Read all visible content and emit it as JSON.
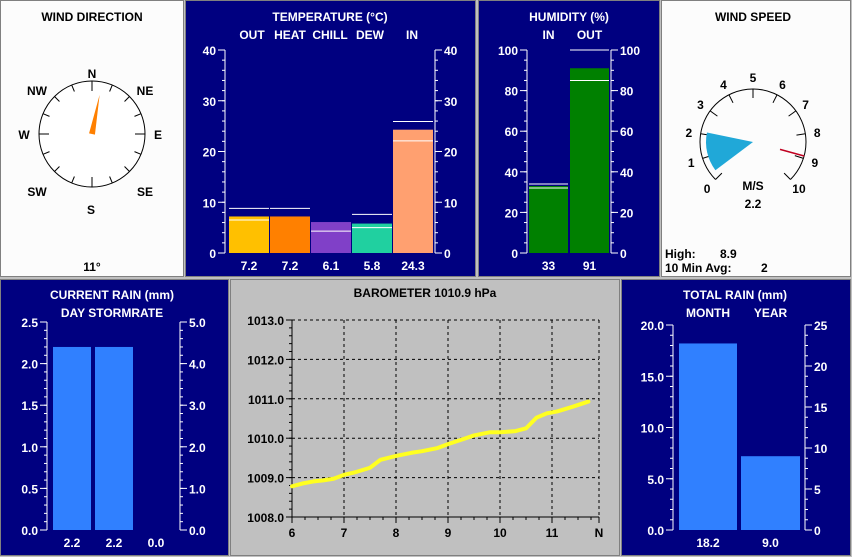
{
  "wind_direction": {
    "title": "WIND DIRECTION",
    "compass_labels": [
      "N",
      "NE",
      "E",
      "SE",
      "S",
      "SW",
      "W",
      "NW"
    ],
    "direction_deg": 11,
    "degrees_label": "11°",
    "needle_color": "#ff8000"
  },
  "wind_speed": {
    "title": "WIND SPEED",
    "scale_labels": [
      "0",
      "1",
      "2",
      "3",
      "4",
      "5",
      "6",
      "7",
      "8",
      "9",
      "10"
    ],
    "scale_max": 10,
    "value": 2.2,
    "high_value": 8.9,
    "unit": "M/S",
    "value_label": "2.2",
    "high_label": "High:",
    "high_text": "8.9",
    "avg_label": "10 Min Avg:",
    "avg_text": "2",
    "wedge_color": "#20a8d8",
    "high_marker_color": "#c00020"
  },
  "colors": {
    "panel_blue": "#000080",
    "rain_bar": "#3080ff",
    "humidity_bar": "#008000",
    "baro_line": "#ffff20"
  },
  "chart_data": [
    {
      "id": "temperature",
      "type": "bar",
      "title": "TEMPERATURE  (°C)",
      "categories": [
        "OUT",
        "HEAT",
        "CHILL",
        "DEW",
        "IN"
      ],
      "values": [
        7.2,
        7.2,
        6.1,
        5.8,
        24.3
      ],
      "value_labels": [
        "7.2",
        "7.2",
        "6.1",
        "5.8",
        "24.3"
      ],
      "high": [
        8.8,
        8.8,
        null,
        7.6,
        25.9
      ],
      "low": [
        6.5,
        null,
        4.3,
        5.0,
        22.1
      ],
      "colors": [
        "#ffc000",
        "#ff8000",
        "#8040c8",
        "#20d0a0",
        "#ffa070"
      ],
      "ylim": [
        0,
        40
      ],
      "yticks": [
        "0",
        "10",
        "20",
        "30",
        "40"
      ],
      "y2ticks": [
        "0",
        "10",
        "20",
        "30",
        "40"
      ]
    },
    {
      "id": "humidity",
      "type": "bar",
      "title": "HUMIDITY  (%)",
      "categories": [
        "IN",
        "OUT"
      ],
      "values": [
        33,
        91
      ],
      "value_labels": [
        "33",
        "91"
      ],
      "high": [
        34,
        100
      ],
      "low": [
        32,
        85
      ],
      "colors": [
        "#008000",
        "#008000"
      ],
      "ylim": [
        0,
        100
      ],
      "yticks": [
        "0",
        "20",
        "40",
        "60",
        "80",
        "100"
      ],
      "y2ticks": [
        "0",
        "20",
        "40",
        "60",
        "80",
        "100"
      ]
    },
    {
      "id": "current_rain",
      "type": "bar",
      "title": "CURRENT RAIN  (mm)",
      "subtitle": "DAY STORMRATE",
      "categories": [
        "DAY",
        "STORM",
        "RATE"
      ],
      "values": [
        2.2,
        2.2,
        0.0
      ],
      "value_labels": [
        "2.2",
        "2.2",
        "0.0"
      ],
      "colors": [
        "#3080ff",
        "#3080ff",
        "#3080ff"
      ],
      "ylim": [
        0,
        2.5
      ],
      "y2lim": [
        0,
        5.0
      ],
      "yticks": [
        "0.0",
        "0.5",
        "1.0",
        "1.5",
        "2.0",
        "2.5"
      ],
      "y2ticks": [
        "0.0",
        "1.0",
        "2.0",
        "3.0",
        "4.0",
        "5.0"
      ]
    },
    {
      "id": "barometer",
      "type": "line",
      "title": "BAROMETER 1010.9 hPa",
      "xticks": [
        "6",
        "7",
        "8",
        "9",
        "10",
        "11",
        "N"
      ],
      "xlim": [
        6,
        11.9
      ],
      "yticks": [
        "1008.0",
        "1009.0",
        "1010.0",
        "1011.0",
        "1012.0",
        "1013.0"
      ],
      "ylim": [
        1008,
        1013
      ],
      "grid": true,
      "x": [
        6.0,
        6.2,
        6.4,
        6.6,
        6.8,
        7.0,
        7.2,
        7.5,
        7.7,
        8.0,
        8.3,
        8.5,
        8.8,
        9.0,
        9.3,
        9.5,
        9.8,
        10.0,
        10.3,
        10.5,
        10.7,
        10.9,
        11.1,
        11.4,
        11.7
      ],
      "y": [
        1008.78,
        1008.85,
        1008.9,
        1008.93,
        1008.97,
        1009.07,
        1009.13,
        1009.25,
        1009.45,
        1009.55,
        1009.63,
        1009.67,
        1009.75,
        1009.85,
        1009.98,
        1010.07,
        1010.15,
        1010.15,
        1010.18,
        1010.25,
        1010.52,
        1010.63,
        1010.68,
        1010.8,
        1010.93
      ]
    },
    {
      "id": "total_rain",
      "type": "bar",
      "title": "TOTAL RAIN  (mm)",
      "categories": [
        "MONTH",
        "YEAR"
      ],
      "values": [
        18.2,
        9.0
      ],
      "value_labels": [
        "18.2",
        "9.0"
      ],
      "colors": [
        "#3080ff",
        "#3080ff"
      ],
      "ylim": [
        0,
        20
      ],
      "y2lim": [
        0,
        25
      ],
      "yticks": [
        "0.0",
        "5.0",
        "10.0",
        "15.0",
        "20.0"
      ],
      "y2ticks": [
        "0",
        "5",
        "10",
        "15",
        "20",
        "25"
      ]
    }
  ]
}
